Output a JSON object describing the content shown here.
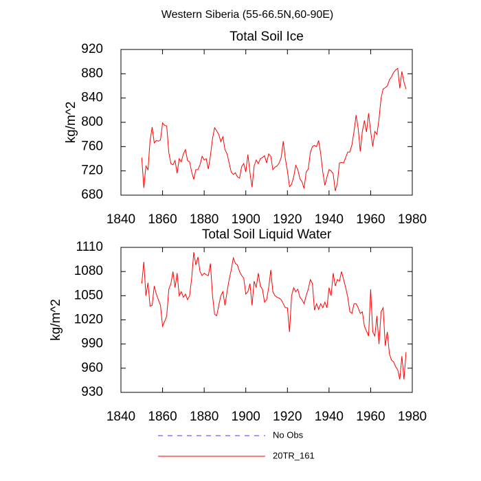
{
  "title": "Western Siberia (55-66.5N,60-90E)",
  "legend": [
    {
      "name": "No Obs",
      "color": "#3a3aff",
      "dash": "7,7"
    },
    {
      "name": "20TR_161",
      "color": "#ff0000",
      "dash": "none"
    }
  ],
  "chart_data": [
    {
      "type": "line",
      "title": "Total Soil Ice",
      "y_label": "kg/m^2",
      "color": "#ff0000",
      "xlim": [
        1840,
        1980
      ],
      "xticks": [
        1840,
        1860,
        1880,
        1900,
        1920,
        1940,
        1960,
        1980
      ],
      "ylim": [
        680,
        920
      ],
      "yticks": [
        680,
        720,
        760,
        800,
        840,
        880,
        920
      ],
      "x": [
        1850,
        1851,
        1852,
        1853,
        1854,
        1855,
        1856,
        1857,
        1858,
        1859,
        1860,
        1861,
        1862,
        1863,
        1864,
        1865,
        1866,
        1867,
        1868,
        1869,
        1870,
        1871,
        1872,
        1873,
        1874,
        1875,
        1876,
        1877,
        1878,
        1879,
        1880,
        1881,
        1882,
        1883,
        1884,
        1885,
        1886,
        1887,
        1888,
        1889,
        1890,
        1891,
        1892,
        1893,
        1894,
        1895,
        1896,
        1897,
        1898,
        1899,
        1900,
        1901,
        1902,
        1903,
        1904,
        1905,
        1906,
        1907,
        1908,
        1909,
        1910,
        1911,
        1912,
        1913,
        1914,
        1915,
        1916,
        1917,
        1918,
        1919,
        1920,
        1921,
        1922,
        1923,
        1924,
        1925,
        1926,
        1927,
        1928,
        1929,
        1930,
        1931,
        1932,
        1933,
        1934,
        1935,
        1936,
        1937,
        1938,
        1939,
        1940,
        1941,
        1942,
        1943,
        1944,
        1945,
        1946,
        1947,
        1948,
        1949,
        1950,
        1951,
        1952,
        1953,
        1954,
        1955,
        1956,
        1957,
        1958,
        1959,
        1960,
        1961,
        1962,
        1963,
        1964,
        1965,
        1966,
        1967,
        1968,
        1969,
        1970,
        1971,
        1972,
        1973,
        1974,
        1975,
        1976,
        1977
      ],
      "values": [
        742,
        692,
        728,
        722,
        770,
        792,
        766,
        770,
        769,
        771,
        799,
        795,
        794,
        750,
        732,
        730,
        737,
        716,
        740,
        735,
        748,
        755,
        737,
        735,
        718,
        706,
        722,
        722,
        730,
        744,
        738,
        740,
        723,
        745,
        773,
        791,
        786,
        780,
        768,
        776,
        755,
        748,
        733,
        718,
        714,
        717,
        710,
        708,
        727,
        732,
        718,
        747,
        717,
        693,
        728,
        738,
        732,
        740,
        742,
        745,
        733,
        748,
        744,
        722,
        726,
        728,
        733,
        742,
        769,
        740,
        720,
        694,
        698,
        710,
        729,
        722,
        707,
        702,
        691,
        718,
        723,
        750,
        760,
        762,
        760,
        770,
        748,
        718,
        696,
        710,
        722,
        720,
        715,
        687,
        700,
        733,
        734,
        733,
        742,
        751,
        751,
        763,
        785,
        812,
        790,
        752,
        785,
        803,
        784,
        815,
        785,
        760,
        785,
        780,
        805,
        840,
        855,
        857,
        860,
        870,
        875,
        882,
        886,
        889,
        856,
        884,
        866,
        855
      ]
    },
    {
      "type": "line",
      "title": "Total Soil Liquid Water",
      "y_label": "kg/m^2",
      "color": "#ff0000",
      "xlim": [
        1840,
        1980
      ],
      "xticks": [
        1840,
        1860,
        1880,
        1900,
        1920,
        1940,
        1960,
        1980
      ],
      "ylim": [
        930,
        1110
      ],
      "yticks": [
        930,
        960,
        990,
        1020,
        1050,
        1080,
        1110
      ],
      "x": [
        1850,
        1851,
        1852,
        1853,
        1854,
        1855,
        1856,
        1857,
        1858,
        1859,
        1860,
        1861,
        1862,
        1863,
        1864,
        1865,
        1866,
        1867,
        1868,
        1869,
        1870,
        1871,
        1872,
        1873,
        1874,
        1875,
        1876,
        1877,
        1878,
        1879,
        1880,
        1881,
        1882,
        1883,
        1884,
        1885,
        1886,
        1887,
        1888,
        1889,
        1890,
        1891,
        1892,
        1893,
        1894,
        1895,
        1896,
        1897,
        1898,
        1899,
        1900,
        1901,
        1902,
        1903,
        1904,
        1905,
        1906,
        1907,
        1908,
        1909,
        1910,
        1911,
        1912,
        1913,
        1914,
        1915,
        1916,
        1917,
        1918,
        1919,
        1920,
        1921,
        1922,
        1923,
        1924,
        1925,
        1926,
        1927,
        1928,
        1929,
        1930,
        1931,
        1932,
        1933,
        1934,
        1935,
        1936,
        1937,
        1938,
        1939,
        1940,
        1941,
        1942,
        1943,
        1944,
        1945,
        1946,
        1947,
        1948,
        1949,
        1950,
        1951,
        1952,
        1953,
        1954,
        1955,
        1956,
        1957,
        1958,
        1959,
        1960,
        1961,
        1962,
        1963,
        1964,
        1965,
        1966,
        1967,
        1968,
        1969,
        1970,
        1971,
        1972,
        1973,
        1974,
        1975,
        1976,
        1977
      ],
      "values": [
        1065,
        1092,
        1050,
        1066,
        1037,
        1038,
        1062,
        1052,
        1045,
        1038,
        1012,
        1018,
        1025,
        1058,
        1065,
        1080,
        1060,
        1078,
        1050,
        1055,
        1048,
        1052,
        1045,
        1050,
        1072,
        1104,
        1088,
        1098,
        1080,
        1075,
        1078,
        1076,
        1075,
        1090,
        1050,
        1027,
        1025,
        1038,
        1050,
        1055,
        1038,
        1055,
        1070,
        1082,
        1097,
        1090,
        1088,
        1080,
        1075,
        1072,
        1052,
        1055,
        1065,
        1038,
        1068,
        1060,
        1078,
        1062,
        1058,
        1042,
        1045,
        1060,
        1082,
        1055,
        1050,
        1048,
        1047,
        1045,
        1040,
        1035,
        1035,
        1005,
        1050,
        1060,
        1055,
        1058,
        1048,
        1045,
        1040,
        1050,
        1058,
        1070,
        1065,
        1032,
        1040,
        1033,
        1040,
        1035,
        1042,
        1035,
        1060,
        1050,
        1078,
        1062,
        1070,
        1068,
        1080,
        1070,
        1060,
        1048,
        1030,
        1028,
        1040,
        1040,
        1035,
        1028,
        1030,
        1012,
        1006,
        1000,
        1058,
        1005,
        1000,
        1025,
        990,
        1030,
        1035,
        988,
        1005,
        978,
        970,
        968,
        962,
        958,
        946,
        975,
        946,
        980
      ]
    }
  ]
}
